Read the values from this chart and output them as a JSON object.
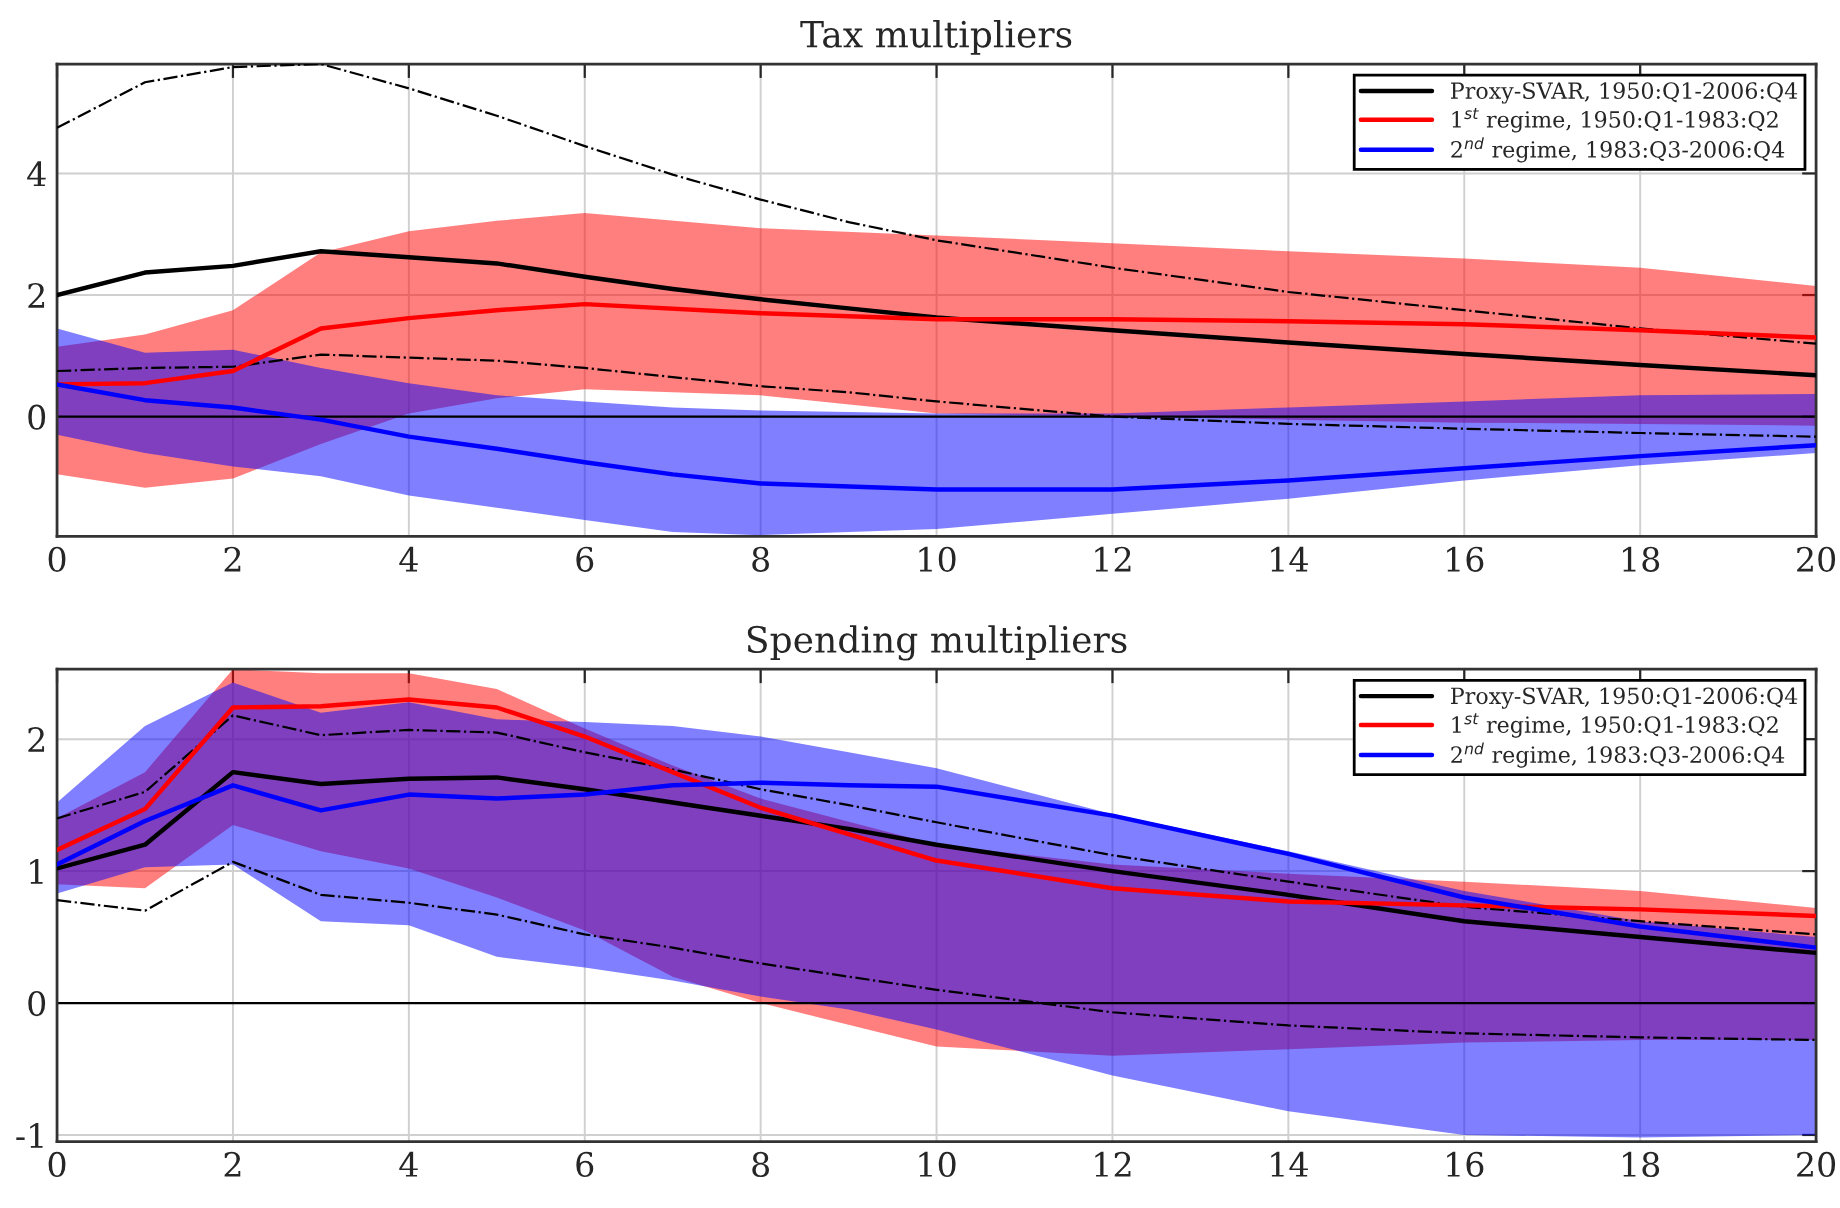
{
  "chart_data": [
    {
      "type": "line",
      "title": "Tax multipliers",
      "xlim": [
        0,
        20
      ],
      "xticks": [
        0,
        2,
        4,
        6,
        8,
        10,
        12,
        14,
        16,
        18,
        20
      ],
      "ylim": [
        -1.97,
        5.8
      ],
      "yticks": [
        0,
        2,
        4
      ],
      "grid": true,
      "legend": "top right",
      "ref_lines": [
        {
          "axis": "y",
          "value": 0,
          "color": "#000000"
        }
      ],
      "series": [
        {
          "name": "Proxy-SVAR, 1950:Q1-2006:Q4",
          "color": "#000000",
          "x": [
            0,
            1,
            2,
            3,
            4,
            5,
            6,
            7,
            8,
            9,
            10,
            12,
            14,
            16,
            18,
            20
          ],
          "values": [
            2.0,
            2.37,
            2.48,
            2.72,
            2.62,
            2.52,
            2.3,
            2.1,
            1.93,
            1.78,
            1.63,
            1.42,
            1.22,
            1.03,
            0.85,
            0.68
          ]
        },
        {
          "color": "#000000",
          "line_style": "dashdot",
          "x": [
            0,
            1,
            2,
            3,
            4,
            5,
            6,
            7,
            8,
            9,
            10,
            12,
            14,
            16,
            18,
            20
          ],
          "values": [
            4.75,
            5.5,
            5.75,
            5.8,
            5.4,
            4.95,
            4.45,
            3.98,
            3.57,
            3.2,
            2.9,
            2.45,
            2.05,
            1.75,
            1.45,
            1.2
          ]
        },
        {
          "color": "#000000",
          "line_style": "dashdot",
          "x": [
            0,
            1,
            2,
            3,
            4,
            5,
            6,
            7,
            8,
            9,
            10,
            12,
            14,
            16,
            18,
            20
          ],
          "values": [
            0.75,
            0.8,
            0.82,
            1.02,
            0.97,
            0.92,
            0.8,
            0.65,
            0.5,
            0.4,
            0.25,
            0.0,
            -0.12,
            -0.2,
            -0.27,
            -0.33
          ]
        },
        {
          "name": "1$^{st}$ regime, 1950:Q1-1983:Q2",
          "color": "#ff0000",
          "x": [
            0,
            1,
            2,
            3,
            4,
            5,
            6,
            8,
            10,
            12,
            14,
            16,
            18,
            20
          ],
          "values": [
            0.53,
            0.55,
            0.75,
            1.45,
            1.62,
            1.75,
            1.85,
            1.7,
            1.6,
            1.6,
            1.57,
            1.52,
            1.42,
            1.3
          ],
          "upper": [
            1.15,
            1.35,
            1.75,
            2.7,
            3.05,
            3.22,
            3.35,
            3.1,
            2.98,
            2.85,
            2.72,
            2.6,
            2.45,
            2.15
          ],
          "lower": [
            -0.95,
            -1.17,
            -1.02,
            -0.45,
            0.05,
            0.3,
            0.45,
            0.35,
            0.05,
            0.0,
            -0.05,
            -0.1,
            -0.12,
            -0.15
          ]
        },
        {
          "name": "2$^{nd}$ regime, 1983:Q3-2006:Q4",
          "color": "#0000ff",
          "x": [
            0,
            1,
            2,
            3,
            4,
            5,
            6,
            7,
            8,
            10,
            12,
            14,
            16,
            18,
            20
          ],
          "values": [
            0.53,
            0.27,
            0.15,
            -0.05,
            -0.33,
            -0.53,
            -0.75,
            -0.95,
            -1.1,
            -1.2,
            -1.2,
            -1.05,
            -0.85,
            -0.65,
            -0.47
          ],
          "upper": [
            1.45,
            1.05,
            1.1,
            0.8,
            0.55,
            0.35,
            0.25,
            0.15,
            0.1,
            0.05,
            0.05,
            0.15,
            0.25,
            0.35,
            0.37
          ],
          "lower": [
            -0.3,
            -0.6,
            -0.82,
            -0.98,
            -1.3,
            -1.5,
            -1.7,
            -1.9,
            -1.95,
            -1.85,
            -1.6,
            -1.35,
            -1.05,
            -0.8,
            -0.6
          ]
        }
      ]
    },
    {
      "type": "line",
      "title": "Spending multipliers",
      "xlim": [
        0,
        20
      ],
      "xticks": [
        0,
        2,
        4,
        6,
        8,
        10,
        12,
        14,
        16,
        18,
        20
      ],
      "ylim": [
        -1.05,
        2.53
      ],
      "yticks": [
        -1,
        0,
        1,
        2
      ],
      "grid": true,
      "legend": "top right",
      "ref_lines": [
        {
          "axis": "y",
          "value": 0,
          "color": "#000000"
        }
      ],
      "series": [
        {
          "name": "Proxy-SVAR, 1950:Q1-2006:Q4",
          "color": "#000000",
          "x": [
            0,
            1,
            2,
            3,
            4,
            5,
            6,
            7,
            8,
            9,
            10,
            12,
            14,
            16,
            18,
            20
          ],
          "values": [
            1.02,
            1.2,
            1.75,
            1.66,
            1.7,
            1.71,
            1.62,
            1.52,
            1.42,
            1.32,
            1.2,
            1.0,
            0.82,
            0.62,
            0.5,
            0.38
          ]
        },
        {
          "color": "#000000",
          "line_style": "dashdot",
          "x": [
            0,
            1,
            2,
            3,
            4,
            5,
            6,
            7,
            8,
            9,
            10,
            12,
            14,
            16,
            18,
            20
          ],
          "values": [
            1.4,
            1.6,
            2.18,
            2.03,
            2.07,
            2.05,
            1.9,
            1.77,
            1.62,
            1.5,
            1.37,
            1.12,
            0.92,
            0.73,
            0.62,
            0.52
          ]
        },
        {
          "color": "#000000",
          "line_style": "dashdot",
          "x": [
            0,
            1,
            2,
            3,
            4,
            5,
            6,
            7,
            8,
            9,
            10,
            12,
            14,
            16,
            18,
            20
          ],
          "values": [
            0.78,
            0.7,
            1.07,
            0.82,
            0.76,
            0.67,
            0.52,
            0.42,
            0.3,
            0.2,
            0.1,
            -0.07,
            -0.17,
            -0.23,
            -0.26,
            -0.28
          ]
        },
        {
          "name": "1$^{st}$ regime, 1950:Q1-1983:Q2",
          "color": "#ff0000",
          "x": [
            0,
            1,
            2,
            3,
            4,
            5,
            6,
            7,
            8,
            10,
            12,
            14,
            16,
            18,
            20
          ],
          "values": [
            1.16,
            1.47,
            2.24,
            2.25,
            2.3,
            2.24,
            2.02,
            1.75,
            1.48,
            1.08,
            0.87,
            0.77,
            0.74,
            0.71,
            0.66
          ],
          "upper": [
            1.4,
            1.75,
            2.53,
            2.5,
            2.5,
            2.38,
            2.08,
            1.8,
            1.55,
            1.2,
            1.05,
            0.98,
            0.92,
            0.85,
            0.72
          ],
          "lower": [
            0.9,
            0.87,
            1.35,
            1.15,
            1.02,
            0.8,
            0.55,
            0.2,
            0.0,
            -0.33,
            -0.4,
            -0.35,
            -0.3,
            -0.28,
            -0.28
          ]
        },
        {
          "name": "2$^{nd}$ regime, 1983:Q3-2006:Q4",
          "color": "#0000ff",
          "x": [
            0,
            1,
            2,
            3,
            4,
            5,
            6,
            7,
            8,
            9,
            10,
            12,
            14,
            16,
            18,
            20
          ],
          "values": [
            1.05,
            1.38,
            1.65,
            1.46,
            1.58,
            1.55,
            1.58,
            1.65,
            1.67,
            1.65,
            1.64,
            1.42,
            1.13,
            0.8,
            0.58,
            0.42
          ],
          "upper": [
            1.52,
            2.1,
            2.43,
            2.2,
            2.28,
            2.15,
            2.13,
            2.1,
            2.02,
            1.9,
            1.78,
            1.43,
            1.15,
            0.85,
            0.62,
            0.5
          ],
          "lower": [
            0.83,
            1.03,
            1.05,
            0.62,
            0.59,
            0.35,
            0.27,
            0.17,
            0.05,
            -0.05,
            -0.2,
            -0.55,
            -0.82,
            -1.0,
            -1.02,
            -1.0
          ]
        }
      ]
    }
  ]
}
